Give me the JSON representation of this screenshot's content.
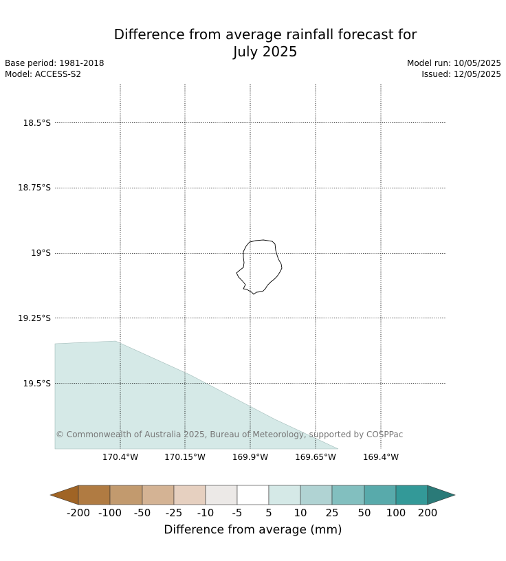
{
  "header": {
    "title_line1": "Difference from average rainfall forecast for",
    "title_line2": "July 2025",
    "base_period": "Base period: 1981-2018",
    "model": "Model: ACCESS-S2",
    "model_run": "Model run: 10/05/2025",
    "issued": "Issued: 12/05/2025"
  },
  "map": {
    "lat_labels": [
      "18.5°S",
      "18.75°S",
      "19°S",
      "19.25°S",
      "19.5°S"
    ],
    "lon_labels": [
      "170.4°W",
      "170.15°W",
      "169.9°W",
      "169.65°W",
      "169.4°W"
    ],
    "grid": true,
    "gridline_style": "dotted",
    "shaded_region_category": "5 to 10 mm",
    "shaded_region_color": "#d5e9e7",
    "island_outline_color": "#000000",
    "copyright": "© Commonwealth of Australia 2025, Bureau of Meteorology, supported by COSPPac"
  },
  "colorbar": {
    "title": "Difference from average (mm)",
    "tick_labels": [
      "-200",
      "-100",
      "-50",
      "-25",
      "-10",
      "-5",
      "5",
      "10",
      "25",
      "50",
      "100",
      "200"
    ],
    "colors": [
      "#a06425",
      "#b07b42",
      "#c29a6e",
      "#d4b394",
      "#e6d0c0",
      "#ece9e7",
      "#ffffff",
      "#d5e9e7",
      "#b0d3d3",
      "#82bfbf",
      "#58aaab",
      "#339998",
      "#2a7a78"
    ],
    "extend": "both"
  }
}
